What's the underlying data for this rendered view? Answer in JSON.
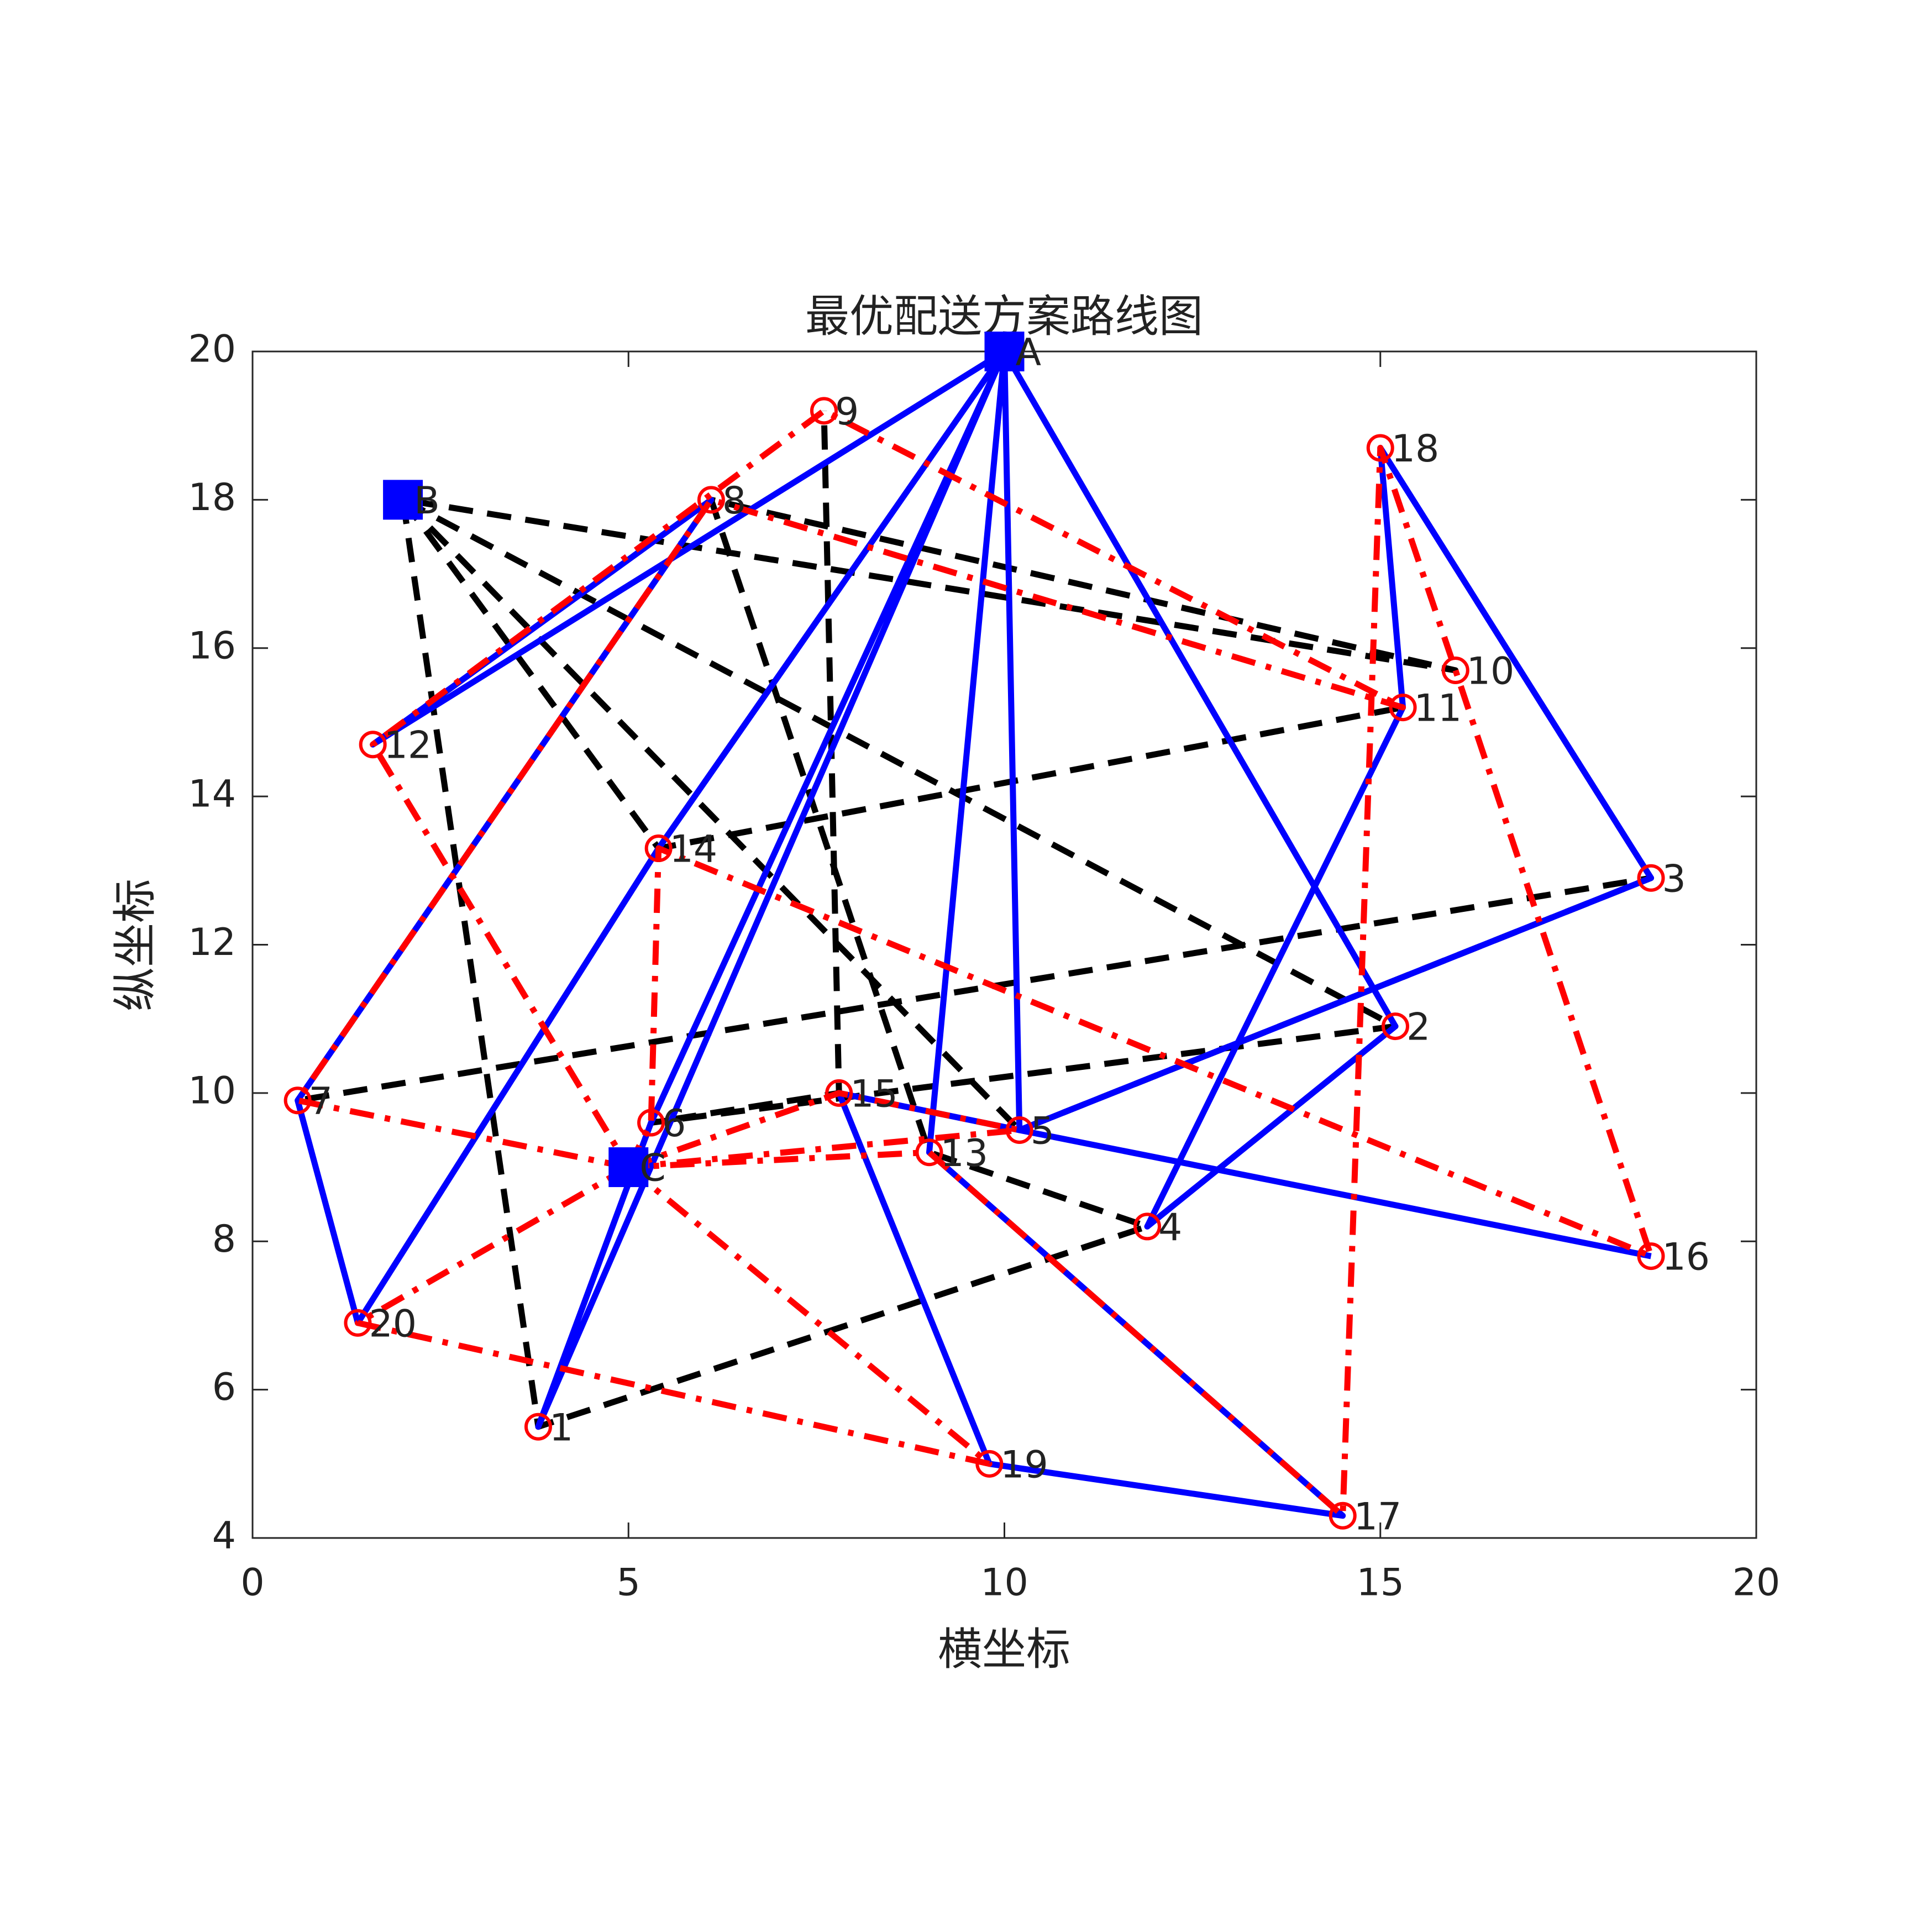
{
  "chart_data": {
    "type": "route",
    "title": "最优配送方案路线图",
    "xlabel": "横坐标",
    "ylabel": "纵坐标",
    "xlim": [
      0,
      20
    ],
    "ylim": [
      4,
      20
    ],
    "xticks": [
      0,
      5,
      10,
      15,
      20
    ],
    "yticks": [
      4,
      6,
      8,
      10,
      12,
      14,
      16,
      18,
      20
    ],
    "depot_color": "#0000ff",
    "customer_color": "#ff0000",
    "nodes": [
      {
        "label": "A",
        "x": 10,
        "y": 20,
        "depot": true
      },
      {
        "label": "B",
        "x": 2,
        "y": 18,
        "depot": true
      },
      {
        "label": "C",
        "x": 5,
        "y": 9,
        "depot": true
      },
      {
        "label": "1",
        "x": 3.8,
        "y": 5.5
      },
      {
        "label": "2",
        "x": 15.2,
        "y": 10.9
      },
      {
        "label": "3",
        "x": 18.6,
        "y": 12.9
      },
      {
        "label": "4",
        "x": 11.9,
        "y": 8.2
      },
      {
        "label": "5",
        "x": 10.2,
        "y": 9.5
      },
      {
        "label": "6",
        "x": 5.3,
        "y": 9.6
      },
      {
        "label": "7",
        "x": 0.6,
        "y": 9.9
      },
      {
        "label": "8",
        "x": 6.1,
        "y": 18.0
      },
      {
        "label": "9",
        "x": 7.6,
        "y": 19.2
      },
      {
        "label": "10",
        "x": 16.0,
        "y": 15.7
      },
      {
        "label": "11",
        "x": 15.3,
        "y": 15.2
      },
      {
        "label": "12",
        "x": 1.6,
        "y": 14.7
      },
      {
        "label": "13",
        "x": 9.0,
        "y": 9.2
      },
      {
        "label": "14",
        "x": 5.4,
        "y": 13.3
      },
      {
        "label": "15",
        "x": 7.8,
        "y": 10.0
      },
      {
        "label": "16",
        "x": 18.6,
        "y": 7.8
      },
      {
        "label": "17",
        "x": 14.5,
        "y": 4.3
      },
      {
        "label": "18",
        "x": 15.0,
        "y": 18.7
      },
      {
        "label": "19",
        "x": 9.8,
        "y": 5.0
      },
      {
        "label": "20",
        "x": 1.4,
        "y": 6.9
      }
    ],
    "routes": [
      {
        "color": "#000000",
        "style": "dashed",
        "stops": [
          1,
          3,
          6,
          15,
          10,
          12,
          1
        ]
      },
      {
        "color": "#000000",
        "style": "dashed",
        "stops": [
          1,
          4,
          8,
          17,
          11
        ]
      },
      {
        "color": "#000000",
        "style": "dashed",
        "stops": [
          1,
          7,
          5,
          9
        ]
      },
      {
        "color": "#000000",
        "style": "dashed",
        "stops": [
          1,
          16,
          13
        ]
      },
      {
        "color": "#0000ff",
        "style": "solid",
        "stops": [
          0,
          14,
          10,
          9,
          22,
          16,
          0
        ]
      },
      {
        "color": "#0000ff",
        "style": "solid",
        "stops": [
          0,
          8,
          3,
          0
        ]
      },
      {
        "color": "#0000ff",
        "style": "solid",
        "stops": [
          0,
          15,
          19,
          21,
          17,
          7,
          0
        ]
      },
      {
        "color": "#0000ff",
        "style": "solid",
        "stops": [
          0,
          4,
          6,
          13,
          20,
          5,
          7,
          18
        ]
      },
      {
        "color": "#ff0000",
        "style": "dashdot",
        "stops": [
          2,
          22,
          21,
          2
        ]
      },
      {
        "color": "#ff0000",
        "style": "dashdot",
        "stops": [
          2,
          9,
          10,
          13,
          11,
          14,
          2
        ]
      },
      {
        "color": "#ff0000",
        "style": "dashdot",
        "stops": [
          2,
          8,
          16,
          18,
          12,
          20,
          19,
          15,
          2
        ]
      },
      {
        "color": "#ff0000",
        "style": "dashdot",
        "stops": [
          2,
          17,
          7,
          2
        ]
      }
    ]
  }
}
